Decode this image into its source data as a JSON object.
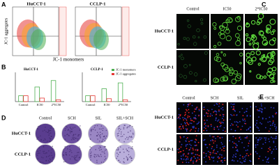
{
  "panels": {
    "A": {
      "label": "A",
      "columns": [
        "HuCCT-1",
        "CCLP-1"
      ],
      "y_label": "JC-1 aggregates",
      "x_label": "JC-1 monomers"
    },
    "B": {
      "label": "B",
      "legend": [
        {
          "name": "JC-1 monomers",
          "color": "#4caf50"
        },
        {
          "name": "JC-1 aggregates",
          "color": "#e53935"
        }
      ],
      "charts": [
        {
          "type": "bar",
          "title": "HuCCT-1",
          "categories": [
            "Control",
            "IC50",
            "2*IC50"
          ],
          "ylim": [
            0,
            5
          ],
          "series": [
            {
              "values": [
                1,
                2.5,
                3.6
              ]
            },
            {
              "values": [
                1,
                0.6,
                0.3
              ]
            }
          ]
        },
        {
          "type": "bar",
          "title": "CCLP-1",
          "categories": [
            "Control",
            "IC50",
            "2*IC50"
          ],
          "ylim": [
            0,
            5
          ],
          "series": [
            {
              "values": [
                1,
                2.2,
                3.2
              ]
            },
            {
              "values": [
                1,
                0.5,
                0.3
              ]
            }
          ]
        }
      ]
    },
    "C": {
      "label": "C",
      "columns": [
        "Control",
        "IC50",
        "2*IC50"
      ],
      "rows": [
        "HuCCT-1",
        "CCLP-1"
      ]
    },
    "D": {
      "label": "D",
      "columns": [
        "Control",
        "SCH",
        "SIL",
        "SIL+SCH"
      ],
      "rows": [
        "HuCCT-1",
        "CCLP-1"
      ]
    },
    "E": {
      "label": "E",
      "columns": [
        "Control",
        "SCH",
        "SIL",
        "SIL+SCH"
      ],
      "rows": [
        "HuCCT-1",
        "CCLP-1"
      ]
    }
  }
}
